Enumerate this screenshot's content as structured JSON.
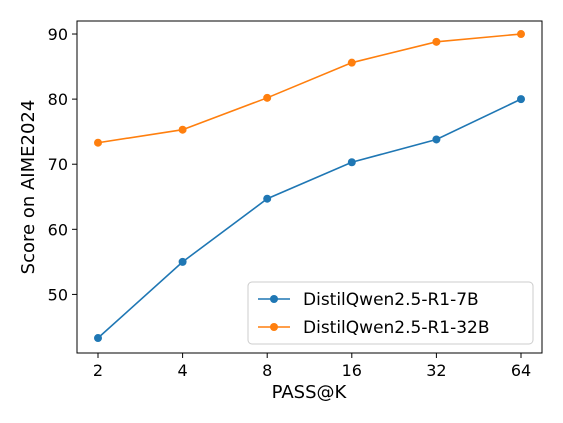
{
  "chart_data": {
    "type": "line",
    "title": "",
    "xlabel": "PASS@K",
    "ylabel": "Score on AIME2024",
    "categories": [
      "2",
      "4",
      "8",
      "16",
      "32",
      "64"
    ],
    "x_scale": "log2",
    "ylim": [
      41,
      92
    ],
    "yticks": [
      50,
      60,
      70,
      80,
      90
    ],
    "grid": false,
    "legend_position": "lower-right",
    "series": [
      {
        "name": "DistilQwen2.5-R1-7B",
        "color": "#1f77b4",
        "marker": "circle",
        "values": [
          43.3,
          55.0,
          64.7,
          70.3,
          73.8,
          80.0
        ]
      },
      {
        "name": "DistilQwen2.5-R1-32B",
        "color": "#ff7f0e",
        "marker": "circle",
        "values": [
          73.3,
          75.3,
          80.2,
          85.6,
          88.8,
          90.0
        ]
      }
    ]
  }
}
